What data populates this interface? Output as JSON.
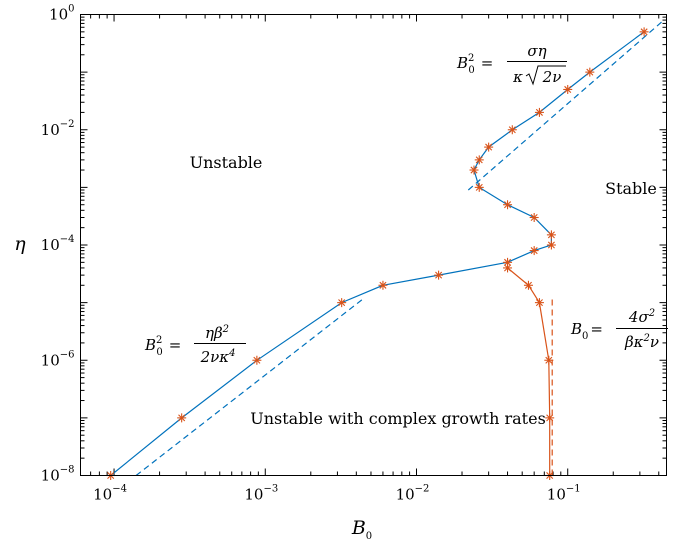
{
  "chart_data": {
    "type": "line",
    "x_scale": "log",
    "y_scale": "log",
    "xlim": [
      6e-05,
      0.45
    ],
    "ylim": [
      1e-08,
      1
    ],
    "xlabel": "B",
    "xlabel_sub": "0",
    "ylabel": "η",
    "x_ticks": [
      {
        "value": 0.0001,
        "base": "10",
        "exp": "−4"
      },
      {
        "value": 0.001,
        "base": "10",
        "exp": "−3"
      },
      {
        "value": 0.01,
        "base": "10",
        "exp": "−2"
      },
      {
        "value": 0.1,
        "base": "10",
        "exp": "−1"
      }
    ],
    "y_ticks": [
      {
        "value": 1e-08,
        "base": "10",
        "exp": "−8"
      },
      {
        "value": 1e-06,
        "base": "10",
        "exp": "−6"
      },
      {
        "value": 0.0001,
        "base": "10",
        "exp": "−4"
      },
      {
        "value": 0.01,
        "base": "10",
        "exp": "−2"
      },
      {
        "value": 1,
        "base": "10",
        "exp": "0"
      }
    ],
    "series": [
      {
        "color": "#0072bd",
        "marker_color": "#d95319",
        "marker": "asterisk",
        "points": [
          [
            9.5e-05,
            1e-08
          ],
          [
            0.00028,
            1e-07
          ],
          [
            0.00088,
            1e-06
          ],
          [
            0.0032,
            1e-05
          ],
          [
            0.006,
            2e-05
          ],
          [
            0.014,
            3e-05
          ],
          [
            0.04,
            5e-05
          ],
          [
            0.06,
            8e-05
          ],
          [
            0.078,
            0.0001
          ],
          [
            0.078,
            0.00015
          ],
          [
            0.06,
            0.0003
          ],
          [
            0.04,
            0.0005
          ],
          [
            0.026,
            0.001
          ],
          [
            0.024,
            0.002
          ],
          [
            0.026,
            0.003
          ],
          [
            0.03,
            0.005
          ],
          [
            0.043,
            0.01
          ],
          [
            0.065,
            0.02
          ],
          [
            0.1,
            0.05
          ],
          [
            0.14,
            0.1
          ],
          [
            0.32,
            0.5
          ]
        ]
      },
      {
        "color": "#d95319",
        "marker_color": "#d95319",
        "marker": "asterisk",
        "points": [
          [
            0.04,
            4e-05
          ],
          [
            0.055,
            2e-05
          ],
          [
            0.065,
            1e-05
          ],
          [
            0.075,
            1e-06
          ],
          [
            0.076,
            1e-07
          ],
          [
            0.076,
            1e-08
          ]
        ]
      }
    ],
    "asymptotes": [
      {
        "color": "#0072bd",
        "dash": true,
        "points": [
          [
            0.00014,
            1e-08
          ],
          [
            0.0045,
            1.2e-05
          ]
        ]
      },
      {
        "color": "#0072bd",
        "dash": true,
        "points": [
          [
            0.022,
            0.0009
          ],
          [
            0.42,
            0.75
          ]
        ]
      },
      {
        "color": "#d95319",
        "dash": true,
        "points": [
          [
            0.079,
            1e-08
          ],
          [
            0.079,
            1.2e-05
          ]
        ]
      }
    ],
    "region_labels": {
      "unstable": "Unstable",
      "stable": "Stable",
      "complex": "Unstable with complex growth rates"
    },
    "formulas": {
      "f1_lhs": "B",
      "f1_lhs_sub": "0",
      "f1_lhs_sup": "2",
      "f1_eq": "=",
      "f1_num": "ση",
      "f1_den_a": "κ",
      "f1_den_b": "2ν",
      "f2_lhs": "B",
      "f2_lhs_sub": "0",
      "f2_lhs_sup": "2",
      "f2_eq": "=",
      "f2_num_a": "ηβ",
      "f2_num_sup": "2",
      "f2_den_a": "2νκ",
      "f2_den_sup": "4",
      "f3_lhs": "B",
      "f3_lhs_sub": "0",
      "f3_eq": "=",
      "f3_num_a": "4σ",
      "f3_num_sup": "2",
      "f3_den_a": "βκ",
      "f3_den_sup": "2",
      "f3_den_b": "ν"
    }
  }
}
